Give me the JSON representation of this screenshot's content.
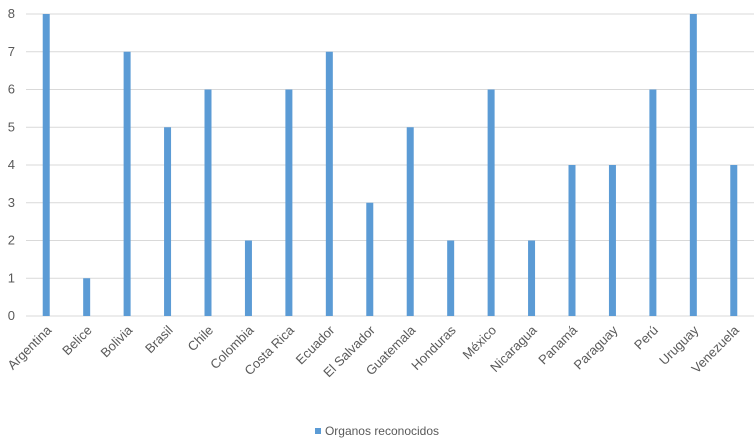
{
  "chart_data": {
    "type": "bar",
    "categories": [
      "Argentina",
      "Belice",
      "Bolivia",
      "Brasil",
      "Chile",
      "Colombia",
      "Costa Rica",
      "Ecuador",
      "El Salvador",
      "Guatemala",
      "Honduras",
      "México",
      "Nicaragua",
      "Panamá",
      "Paraguay",
      "Perú",
      "Uruguay",
      "Venezuela"
    ],
    "series": [
      {
        "name": "Organos reconocidos",
        "values": [
          8,
          1,
          7,
          5,
          6,
          2,
          6,
          7,
          3,
          5,
          2,
          6,
          2,
          4,
          4,
          6,
          8,
          4
        ],
        "color": "#5b9bd5"
      }
    ],
    "ylim": [
      0,
      8
    ],
    "yticks": [
      0,
      1,
      2,
      3,
      4,
      5,
      6,
      7,
      8
    ],
    "grid": true,
    "gridColor": "#d9d9d9",
    "legend": "bottom-center"
  }
}
